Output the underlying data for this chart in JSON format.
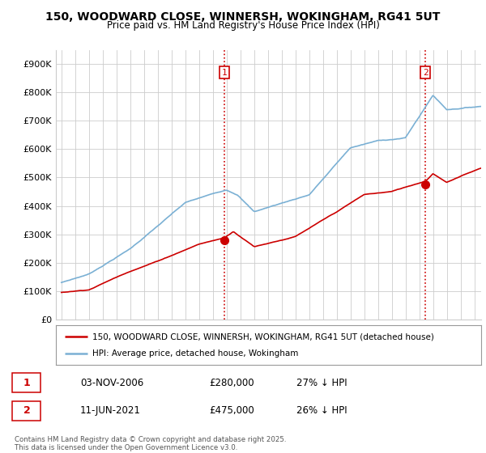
{
  "title": "150, WOODWARD CLOSE, WINNERSH, WOKINGHAM, RG41 5UT",
  "subtitle": "Price paid vs. HM Land Registry's House Price Index (HPI)",
  "legend_line1": "150, WOODWARD CLOSE, WINNERSH, WOKINGHAM, RG41 5UT (detached house)",
  "legend_line2": "HPI: Average price, detached house, Wokingham",
  "annotation1_num": "1",
  "annotation1_date": "03-NOV-2006",
  "annotation1_price": "£280,000",
  "annotation1_hpi": "27% ↓ HPI",
  "annotation2_num": "2",
  "annotation2_date": "11-JUN-2021",
  "annotation2_price": "£475,000",
  "annotation2_hpi": "26% ↓ HPI",
  "footer": "Contains HM Land Registry data © Crown copyright and database right 2025.\nThis data is licensed under the Open Government Licence v3.0.",
  "red_line_color": "#cc0000",
  "blue_line_color": "#7ab0d4",
  "dashed_line_color": "#cc0000",
  "background_color": "#ffffff",
  "grid_color": "#cccccc",
  "ylim": [
    0,
    950000
  ],
  "yticks": [
    0,
    100000,
    200000,
    300000,
    400000,
    500000,
    600000,
    700000,
    800000,
    900000
  ],
  "ytick_labels": [
    "£0",
    "£100K",
    "£200K",
    "£300K",
    "£400K",
    "£500K",
    "£600K",
    "£700K",
    "£800K",
    "£900K"
  ],
  "marker1_x": 2006.84,
  "marker1_y": 280000,
  "marker2_x": 2021.44,
  "marker2_y": 475000,
  "vline1_x": 2006.84,
  "vline2_x": 2021.44,
  "xlim_left": 1994.6,
  "xlim_right": 2025.5
}
